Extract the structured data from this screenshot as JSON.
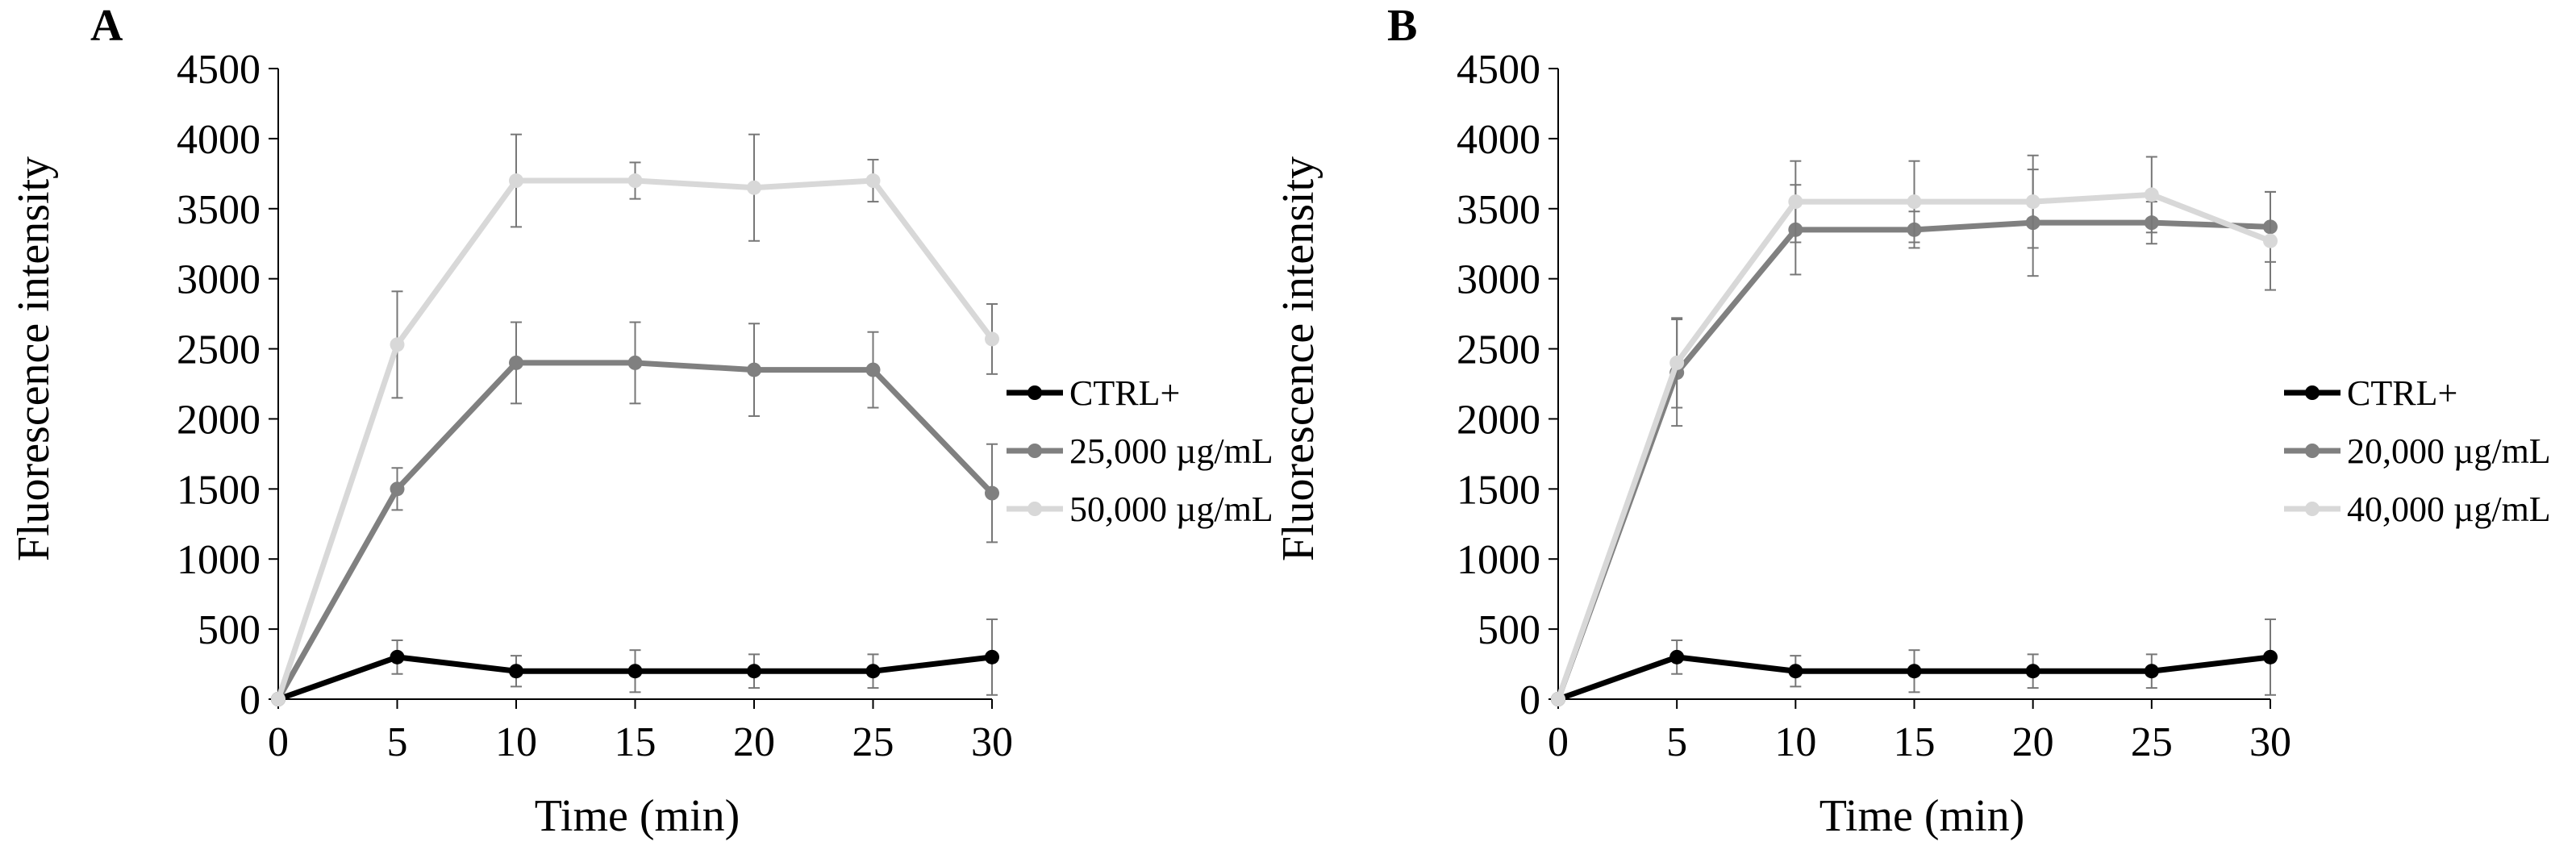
{
  "chart_data": [
    {
      "type": "line",
      "panel_label": "A",
      "xlabel": "Time (min)",
      "ylabel": "Fluorescence intensity",
      "x": [
        0,
        5,
        10,
        15,
        20,
        25,
        30
      ],
      "xlim": [
        0,
        30
      ],
      "ylim": [
        0,
        4500
      ],
      "xticks": [
        "0",
        "5",
        "10",
        "15",
        "20",
        "25",
        "30"
      ],
      "yticks": [
        "0",
        "500",
        "1000",
        "1500",
        "2000",
        "2500",
        "3000",
        "3500",
        "4000",
        "4500"
      ],
      "grid": false,
      "legend_position": "right",
      "series": [
        {
          "name": "CTRL+",
          "color": "#000000",
          "values": [
            0,
            300,
            200,
            200,
            200,
            200,
            300
          ],
          "errors": [
            0,
            120,
            110,
            150,
            120,
            120,
            270
          ]
        },
        {
          "name": "25,000 µg/mL",
          "color": "#808080",
          "values": [
            0,
            1500,
            2400,
            2400,
            2350,
            2350,
            1470
          ],
          "errors": [
            0,
            150,
            290,
            290,
            330,
            270,
            350
          ]
        },
        {
          "name": "50,000 µg/mL",
          "color": "#d8d8d8",
          "values": [
            0,
            2530,
            3700,
            3700,
            3650,
            3700,
            2570
          ],
          "errors": [
            0,
            380,
            330,
            130,
            380,
            150,
            250
          ]
        }
      ]
    },
    {
      "type": "line",
      "panel_label": "B",
      "xlabel": "Time (min)",
      "ylabel": "Fluorescence intensity",
      "x": [
        0,
        5,
        10,
        15,
        20,
        25,
        30
      ],
      "xlim": [
        0,
        30
      ],
      "ylim": [
        0,
        4500
      ],
      "xticks": [
        "0",
        "5",
        "10",
        "15",
        "20",
        "25",
        "30"
      ],
      "yticks": [
        "0",
        "500",
        "1000",
        "1500",
        "2000",
        "2500",
        "3000",
        "3500",
        "4000",
        "4500"
      ],
      "grid": false,
      "legend_position": "right",
      "series": [
        {
          "name": "CTRL+",
          "color": "#000000",
          "values": [
            0,
            300,
            200,
            200,
            200,
            200,
            300
          ],
          "errors": [
            0,
            120,
            110,
            150,
            120,
            120,
            270
          ]
        },
        {
          "name": "20,000 µg/mL",
          "color": "#808080",
          "values": [
            0,
            2330,
            3350,
            3350,
            3400,
            3400,
            3370
          ],
          "errors": [
            0,
            380,
            320,
            130,
            380,
            150,
            250
          ]
        },
        {
          "name": "40,000 µg/mL",
          "color": "#d8d8d8",
          "values": [
            0,
            2400,
            3550,
            3550,
            3550,
            3600,
            3270
          ],
          "errors": [
            0,
            320,
            290,
            290,
            330,
            270,
            350
          ]
        }
      ]
    }
  ]
}
